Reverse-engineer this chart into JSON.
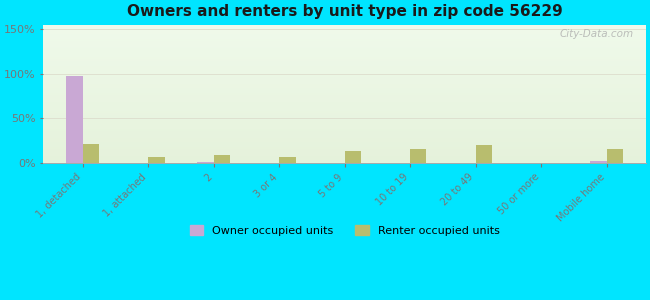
{
  "title": "Owners and renters by unit type in zip code 56229",
  "categories": [
    "1, detached",
    "1, attached",
    "2",
    "3 or 4",
    "5 to 9",
    "10 to 19",
    "20 to 49",
    "50 or more",
    "Mobile home"
  ],
  "owner_values": [
    97,
    0,
    1,
    0,
    0,
    0,
    0,
    0,
    2
  ],
  "renter_values": [
    21,
    6,
    9,
    7,
    13,
    16,
    20,
    0,
    15
  ],
  "owner_color": "#c9a8d4",
  "renter_color": "#b8bd6e",
  "bg_color": "#00e5ff",
  "plot_bg_color_top_left": "#e8f5e2",
  "plot_bg_color_bottom": "#f0f8e8",
  "title_color": "#1a1a1a",
  "axis_label_color": "#777777",
  "yticks": [
    0,
    50,
    100,
    150
  ],
  "ylim": [
    0,
    155
  ],
  "watermark": "City-Data.com",
  "legend_owner": "Owner occupied units",
  "legend_renter": "Renter occupied units",
  "bar_width": 0.25
}
